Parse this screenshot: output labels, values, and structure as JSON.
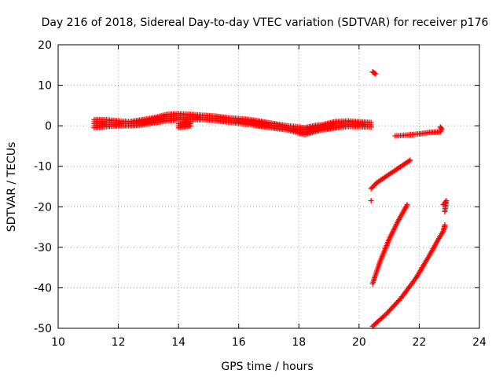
{
  "chart_data": {
    "type": "scatter",
    "title": "Day 216 of 2018, Sidereal Day-to-day VTEC variation (SDTVAR) for receiver p176",
    "xlabel": "GPS time / hours",
    "ylabel": "SDTVAR / TECUs",
    "xlim": [
      10,
      24
    ],
    "ylim": [
      -50,
      20
    ],
    "xticks": [
      10,
      12,
      14,
      16,
      18,
      20,
      22,
      24
    ],
    "yticks": [
      -50,
      -40,
      -30,
      -20,
      -10,
      0,
      10,
      20
    ],
    "grid": true,
    "legend": "none",
    "marker": "plus",
    "color": "#ff0000",
    "series": [
      {
        "band": true,
        "points": [
          [
            11.2,
            1.5,
            -0.5
          ],
          [
            11.6,
            1.5,
            -0.2
          ],
          [
            12.0,
            1.2,
            0.0
          ],
          [
            12.4,
            1.0,
            0.0
          ],
          [
            12.8,
            1.5,
            0.2
          ],
          [
            13.2,
            2.0,
            0.8
          ],
          [
            13.6,
            2.8,
            1.2
          ],
          [
            14.0,
            3.0,
            1.5
          ],
          [
            14.4,
            2.8,
            1.5
          ],
          [
            14.8,
            2.6,
            1.5
          ],
          [
            15.2,
            2.4,
            1.3
          ],
          [
            15.6,
            2.0,
            1.0
          ],
          [
            16.0,
            1.8,
            0.6
          ],
          [
            16.4,
            1.5,
            0.3
          ],
          [
            16.8,
            1.0,
            -0.2
          ],
          [
            17.2,
            0.5,
            -0.6
          ],
          [
            17.6,
            0.0,
            -1.0
          ],
          [
            18.0,
            -0.3,
            -1.8
          ],
          [
            18.2,
            -0.5,
            -2.2
          ],
          [
            18.5,
            0.0,
            -1.5
          ],
          [
            18.8,
            0.3,
            -1.0
          ],
          [
            19.2,
            1.0,
            -0.5
          ],
          [
            19.6,
            1.2,
            -0.2
          ],
          [
            20.0,
            1.0,
            -0.2
          ],
          [
            20.4,
            0.8,
            -0.3
          ]
        ]
      },
      {
        "band": true,
        "points": [
          [
            14.0,
            0.5,
            -0.5
          ],
          [
            14.4,
            1.0,
            0.0
          ]
        ]
      },
      {
        "points": [
          [
            20.45,
            13.3
          ],
          [
            20.55,
            12.8
          ]
        ]
      },
      {
        "points": [
          [
            21.2,
            -2.5
          ],
          [
            21.6,
            -2.3
          ],
          [
            22.0,
            -2.0
          ],
          [
            22.4,
            -1.6
          ],
          [
            22.7,
            -1.5
          ],
          [
            22.75,
            -0.8
          ],
          [
            22.7,
            -0.3
          ]
        ]
      },
      {
        "points": [
          [
            20.4,
            -15.5
          ],
          [
            20.6,
            -14.0
          ],
          [
            20.9,
            -12.5
          ],
          [
            21.2,
            -11.0
          ],
          [
            21.5,
            -9.5
          ],
          [
            21.7,
            -8.5
          ]
        ]
      },
      {
        "points": [
          [
            20.4,
            -18.5
          ]
        ]
      },
      {
        "points": [
          [
            20.45,
            -39
          ],
          [
            20.7,
            -33.5
          ],
          [
            21.0,
            -28.0
          ],
          [
            21.3,
            -23.5
          ],
          [
            21.6,
            -19.5
          ]
        ]
      },
      {
        "points": [
          [
            20.45,
            -49.5
          ],
          [
            20.9,
            -46.5
          ],
          [
            21.4,
            -42.5
          ],
          [
            21.9,
            -37.5
          ],
          [
            22.3,
            -32.5
          ],
          [
            22.6,
            -28.5
          ],
          [
            22.8,
            -26.0
          ],
          [
            22.85,
            -24.5
          ]
        ]
      },
      {
        "points": [
          [
            22.8,
            -19.5
          ],
          [
            22.9,
            -18.5
          ],
          [
            22.85,
            -21.2
          ]
        ]
      }
    ]
  }
}
